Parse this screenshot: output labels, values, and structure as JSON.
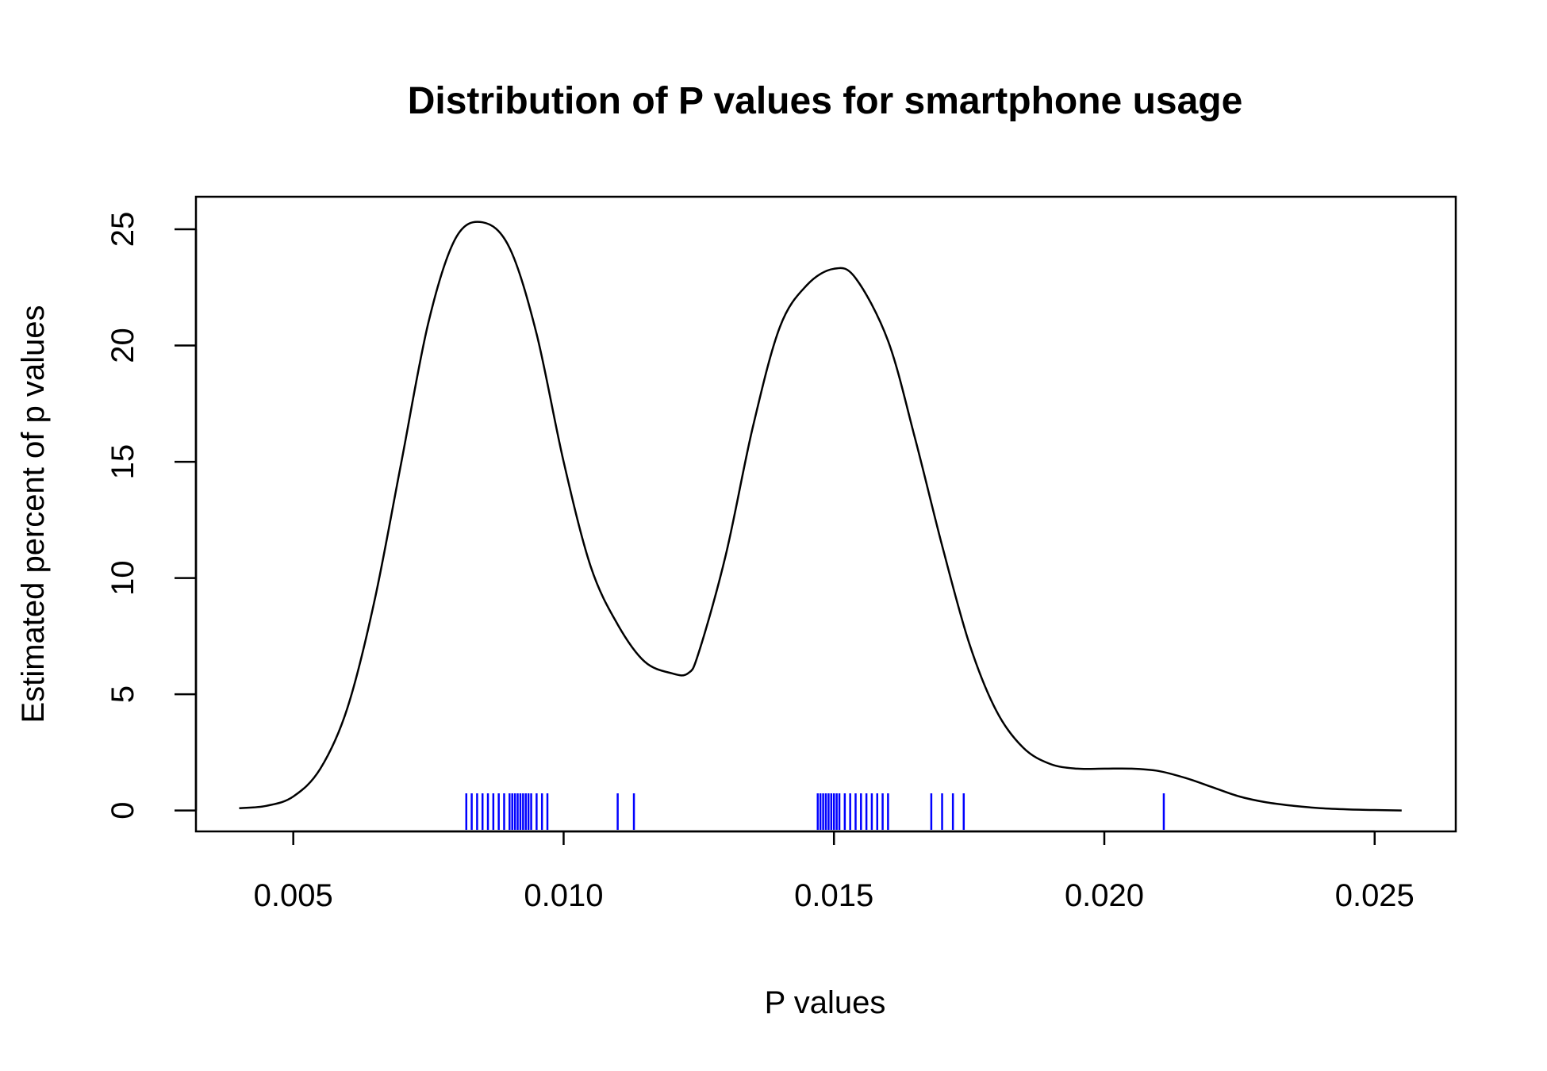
{
  "chart_data": {
    "type": "line",
    "title": "Distribution of P values for smartphone usage",
    "xlabel": "P values",
    "ylabel": "Estimated percent of p values",
    "xlim": [
      0.0032,
      0.0265
    ],
    "ylim": [
      -0.9,
      26.4
    ],
    "x_ticks": [
      0.005,
      0.01,
      0.015,
      0.02,
      0.025
    ],
    "x_tick_labels": [
      "0.005",
      "0.010",
      "0.015",
      "0.020",
      "0.025"
    ],
    "y_ticks": [
      0,
      5,
      10,
      15,
      20,
      25
    ],
    "y_tick_labels": [
      "0",
      "5",
      "10",
      "15",
      "20",
      "25"
    ],
    "grid": false,
    "colors": {
      "density_line": "#000000",
      "rug": "#0000ff"
    },
    "density": {
      "x": [
        0.004,
        0.0045,
        0.005,
        0.0055,
        0.006,
        0.0065,
        0.007,
        0.0075,
        0.008,
        0.0085,
        0.009,
        0.0095,
        0.01,
        0.0105,
        0.011,
        0.0115,
        0.012,
        0.0123,
        0.0125,
        0.013,
        0.0135,
        0.014,
        0.0145,
        0.015,
        0.0154,
        0.016,
        0.0165,
        0.017,
        0.0175,
        0.018,
        0.0185,
        0.019,
        0.0195,
        0.02,
        0.0205,
        0.021,
        0.0215,
        0.022,
        0.0225,
        0.023,
        0.0235,
        0.024,
        0.0245,
        0.025,
        0.0255
      ],
      "y": [
        0.1,
        0.2,
        0.6,
        1.8,
        4.4,
        9.0,
        15.0,
        21.0,
        24.6,
        25.3,
        24.2,
        20.5,
        15.0,
        10.5,
        8.0,
        6.4,
        5.9,
        5.9,
        6.8,
        11.0,
        16.5,
        20.8,
        22.6,
        23.3,
        22.9,
        20.2,
        16.0,
        11.4,
        7.2,
        4.3,
        2.7,
        2.0,
        1.8,
        1.8,
        1.8,
        1.7,
        1.4,
        1.0,
        0.6,
        0.35,
        0.2,
        0.1,
        0.05,
        0.02,
        0.0
      ]
    },
    "rug": [
      0.0082,
      0.0083,
      0.0084,
      0.0085,
      0.0086,
      0.0087,
      0.0088,
      0.0089,
      0.009,
      0.00905,
      0.0091,
      0.00915,
      0.0092,
      0.00925,
      0.0093,
      0.00935,
      0.0094,
      0.0095,
      0.0096,
      0.0097,
      0.011,
      0.0113,
      0.0147,
      0.01475,
      0.0148,
      0.01485,
      0.0149,
      0.01495,
      0.015,
      0.01505,
      0.0151,
      0.0152,
      0.0153,
      0.0154,
      0.0155,
      0.0156,
      0.0157,
      0.0158,
      0.0159,
      0.016,
      0.0168,
      0.017,
      0.0172,
      0.0174,
      0.0211
    ]
  }
}
